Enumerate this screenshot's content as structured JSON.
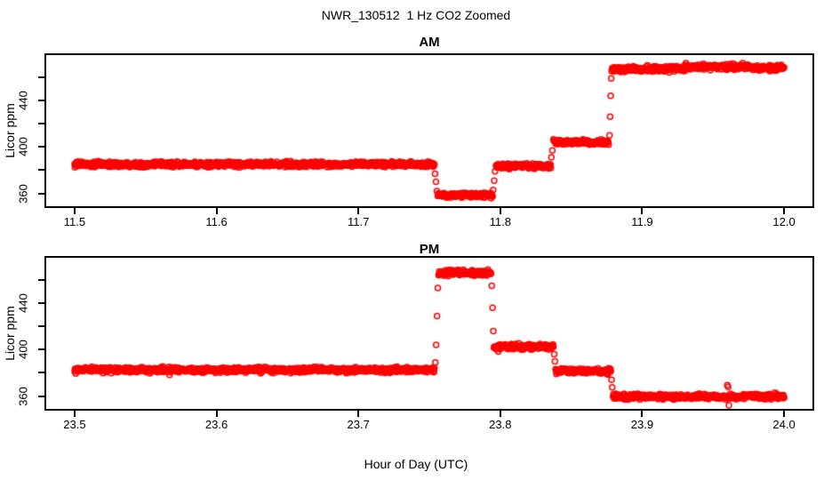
{
  "figure_title": "NWR_130512  1 Hz CO2 Zoomed",
  "xlabel": "Hour of Day (UTC)",
  "colors": {
    "points": "#FF0000",
    "axis": "#000000",
    "background": "#FFFFFF"
  },
  "chart_data": [
    {
      "type": "scatter",
      "title": "AM",
      "ylabel": "Licor ppm",
      "marker": "open-circle",
      "sample_rate_hz": 1,
      "xlim": [
        11.48,
        12.02
      ],
      "ylim": [
        349,
        479
      ],
      "xticks": [
        11.5,
        11.6,
        11.7,
        11.8,
        11.9,
        12.0
      ],
      "yticks_labeled": [
        360,
        400,
        440
      ],
      "yticks_minor": [
        380,
        420,
        460
      ],
      "segments": [
        {
          "t0": 11.5,
          "t1": 11.7535,
          "level": 385.0,
          "noise": 1.1
        },
        {
          "t0": 11.756,
          "t1": 11.7945,
          "level": 358.5,
          "noise": 1.0
        },
        {
          "t0": 11.797,
          "t1": 11.8355,
          "level": 383.5,
          "noise": 1.1
        },
        {
          "t0": 11.8375,
          "t1": 11.8765,
          "level": 404.0,
          "noise": 1.1
        },
        {
          "t0": 11.8785,
          "t1": 11.93,
          "level": 467.0,
          "noise": 1.2
        },
        {
          "t0": 11.93,
          "t1": 11.975,
          "level": 469.0,
          "noise": 1.2
        },
        {
          "t0": 11.975,
          "t1": 12.0,
          "level": 468.0,
          "noise": 1.2
        }
      ],
      "transition_points": [
        [
          11.754,
          377.0
        ],
        [
          11.7547,
          370.0
        ],
        [
          11.7553,
          362.0
        ],
        [
          11.795,
          363.0
        ],
        [
          11.7957,
          371.0
        ],
        [
          11.7963,
          379.0
        ],
        [
          11.836,
          391.0
        ],
        [
          11.8367,
          397.0
        ],
        [
          11.877,
          410.0
        ],
        [
          11.8774,
          426.0
        ],
        [
          11.8778,
          444.0
        ],
        [
          11.8782,
          459.0
        ],
        [
          11.919,
          464.0
        ]
      ]
    },
    {
      "type": "scatter",
      "title": "PM",
      "ylabel": "Licor ppm",
      "marker": "open-circle",
      "sample_rate_hz": 1,
      "xlim": [
        23.48,
        24.02
      ],
      "ylim": [
        349,
        479
      ],
      "xticks": [
        23.5,
        23.6,
        23.7,
        23.8,
        23.9,
        24.0
      ],
      "yticks_labeled": [
        360,
        400,
        440
      ],
      "yticks_minor": [
        380,
        420,
        460
      ],
      "segments": [
        {
          "t0": 23.5,
          "t1": 23.7535,
          "level": 382.5,
          "noise": 1.1
        },
        {
          "t0": 23.7565,
          "t1": 23.7935,
          "level": 466.0,
          "noise": 1.2
        },
        {
          "t0": 23.7955,
          "t1": 23.8375,
          "level": 402.5,
          "noise": 1.1
        },
        {
          "t0": 23.839,
          "t1": 23.878,
          "level": 381.5,
          "noise": 1.1
        },
        {
          "t0": 23.8795,
          "t1": 24.0,
          "level": 359.5,
          "noise": 1.1
        }
      ],
      "transition_points": [
        [
          23.7542,
          389.0
        ],
        [
          23.7548,
          404.0
        ],
        [
          23.7554,
          429.0
        ],
        [
          23.756,
          453.0
        ],
        [
          23.794,
          455.0
        ],
        [
          23.7946,
          436.0
        ],
        [
          23.7951,
          416.0
        ],
        [
          23.838,
          396.0
        ],
        [
          23.8385,
          390.0
        ],
        [
          23.8784,
          374.0
        ],
        [
          23.8789,
          367.5
        ],
        [
          23.96,
          369.5
        ],
        [
          23.9606,
          368.0
        ],
        [
          23.9611,
          352.0
        ]
      ]
    }
  ]
}
